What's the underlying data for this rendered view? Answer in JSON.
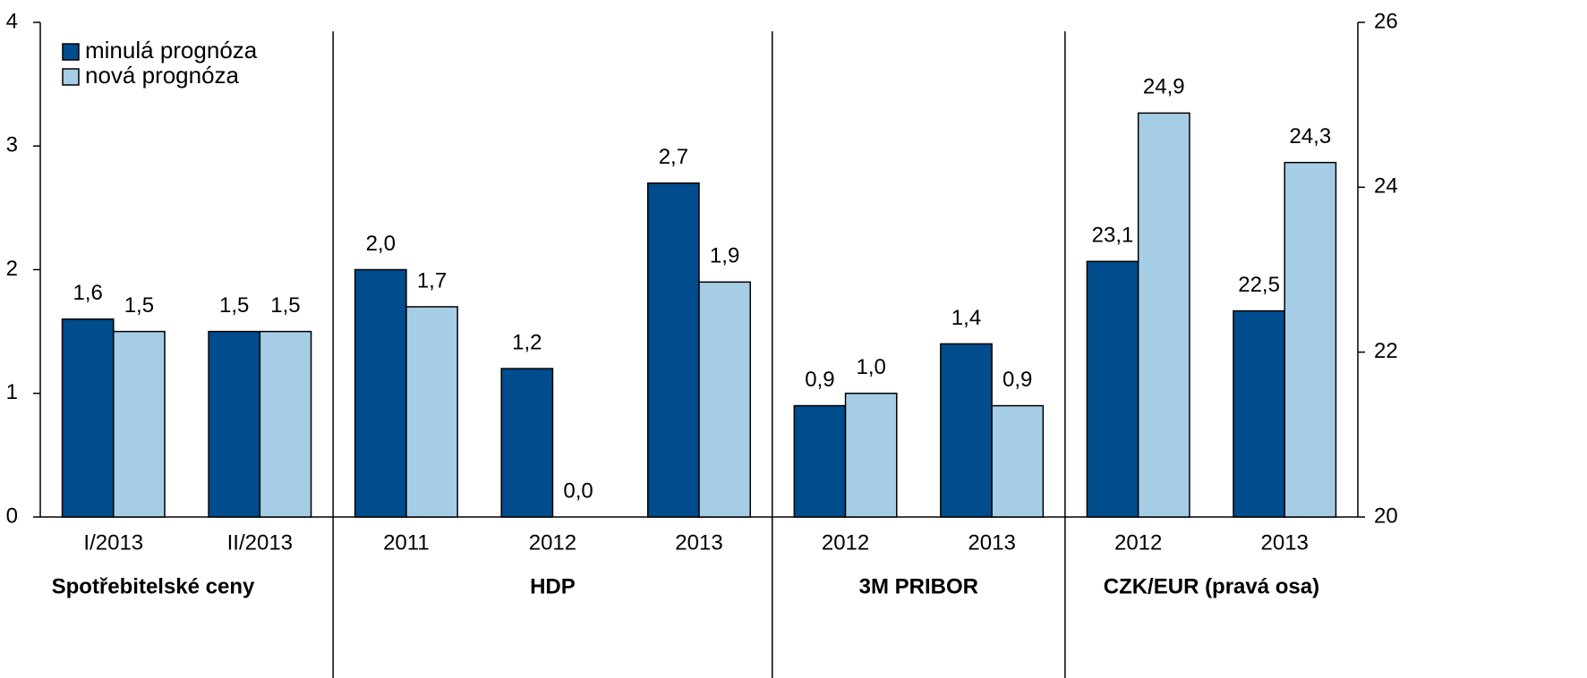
{
  "chart_data": {
    "type": "bar",
    "groups": [
      {
        "label": "Spotřebitelské ceny",
        "categories": [
          "I/2013",
          "II/2013"
        ]
      },
      {
        "label": "HDP",
        "categories": [
          "2011",
          "2012",
          "2013"
        ]
      },
      {
        "label": "3M PRIBOR",
        "categories": [
          "2012",
          "2013"
        ]
      },
      {
        "label": "CZK/EUR (pravá osa)",
        "categories": [
          "2012",
          "2013"
        ]
      }
    ],
    "series": [
      {
        "name": "minulá prognóza",
        "color": "#004c8c",
        "values": [
          1.6,
          1.5,
          2.0,
          1.2,
          2.7,
          0.9,
          1.4,
          null,
          null
        ],
        "value_labels": [
          "1,6",
          "1,5",
          "2,0",
          "1,2",
          "2,7",
          "0,9",
          "1,4",
          null,
          null
        ]
      },
      {
        "name": "nová prognóza",
        "color": "#a6cde6",
        "values": [
          1.5,
          1.5,
          1.7,
          0.0,
          1.9,
          1.0,
          0.9,
          null,
          null
        ],
        "value_labels": [
          "1,5",
          "1,5",
          "1,7",
          "0,0",
          "1,9",
          "1,0",
          "0,9",
          null,
          null
        ]
      },
      {
        "color": "#004c8c",
        "axis": "y2",
        "values": [
          null,
          null,
          null,
          null,
          null,
          null,
          null,
          23.1,
          22.5
        ],
        "value_labels": [
          null,
          null,
          null,
          null,
          null,
          null,
          null,
          "23,1",
          "22,5"
        ]
      },
      {
        "color": "#a6cde6",
        "axis": "y2",
        "values": [
          null,
          null,
          null,
          null,
          null,
          null,
          null,
          24.9,
          24.3
        ],
        "value_labels": [
          null,
          null,
          null,
          null,
          null,
          null,
          null,
          "24,9",
          "24,3"
        ]
      }
    ],
    "ylim": [
      0,
      4
    ],
    "yticks": [
      0,
      1,
      2,
      3,
      4
    ],
    "y2lim": [
      20,
      26
    ],
    "y2ticks": [
      20,
      22,
      24,
      26
    ],
    "legend": "top-left",
    "grid": false
  }
}
